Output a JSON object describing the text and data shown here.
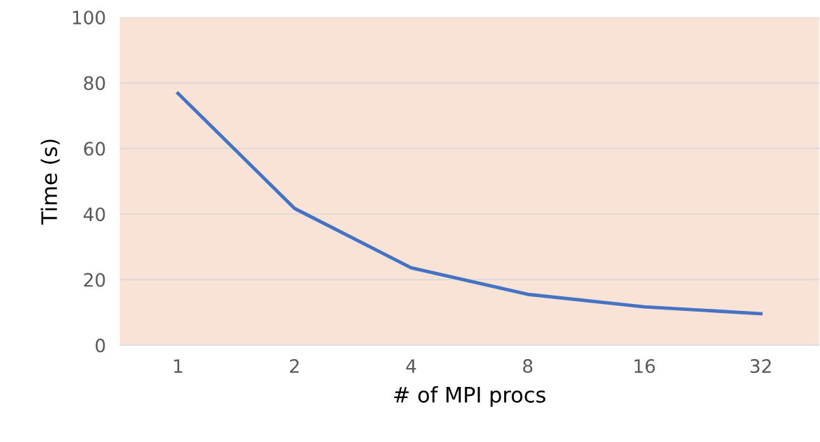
{
  "chart_data": {
    "type": "line",
    "xlabel": "# of MPI procs",
    "ylabel": "Time (s)",
    "categories": [
      "1",
      "2",
      "4",
      "8",
      "16",
      "32"
    ],
    "series": [
      {
        "color": "#4472c4",
        "values": [
          76.8,
          41.7,
          23.6,
          15.5,
          11.7,
          9.6
        ]
      }
    ],
    "ylim": [
      0,
      100
    ],
    "yticks": [
      0,
      20,
      40,
      60,
      80,
      100
    ],
    "grid": "y",
    "line_style": "solid",
    "marker": "none"
  }
}
